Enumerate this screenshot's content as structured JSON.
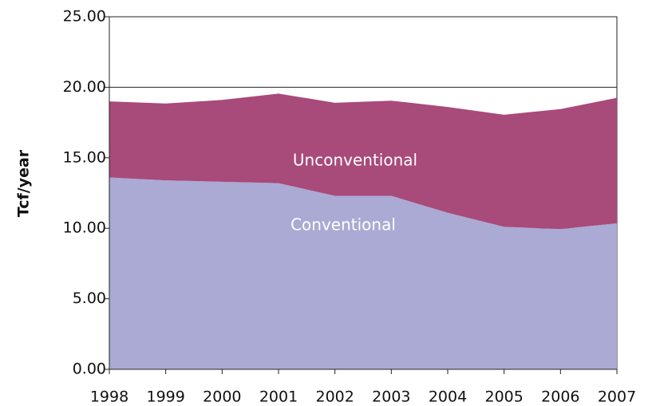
{
  "chart_data": {
    "type": "stacked_area",
    "y_label": "Tcf/year",
    "x": [
      1998,
      1999,
      2000,
      2001,
      2002,
      2003,
      2004,
      2005,
      2006,
      2007
    ],
    "xlim": [
      1998,
      2007
    ],
    "xticks": [
      1998,
      1999,
      2000,
      2001,
      2002,
      2003,
      2004,
      2005,
      2006,
      2007
    ],
    "series": [
      {
        "name": "Conventional",
        "color": "#aaaad4",
        "values": [
          13.6,
          13.4,
          13.3,
          13.2,
          12.3,
          12.3,
          11.1,
          10.1,
          9.95,
          10.35
        ]
      },
      {
        "name": "Unconventional",
        "color": "#a84a7a",
        "values": [
          5.4,
          5.45,
          5.8,
          6.35,
          6.6,
          6.75,
          7.5,
          7.95,
          8.5,
          8.9
        ]
      }
    ],
    "ylim": [
      0,
      25
    ],
    "yticks": [
      {
        "value": 0,
        "label": "0.00"
      },
      {
        "value": 5,
        "label": "5.00"
      },
      {
        "value": 10,
        "label": "10.00"
      },
      {
        "value": 15,
        "label": "15.00"
      },
      {
        "value": 20,
        "label": "20.00"
      },
      {
        "value": 25,
        "label": "25.00"
      }
    ],
    "grid": true
  }
}
